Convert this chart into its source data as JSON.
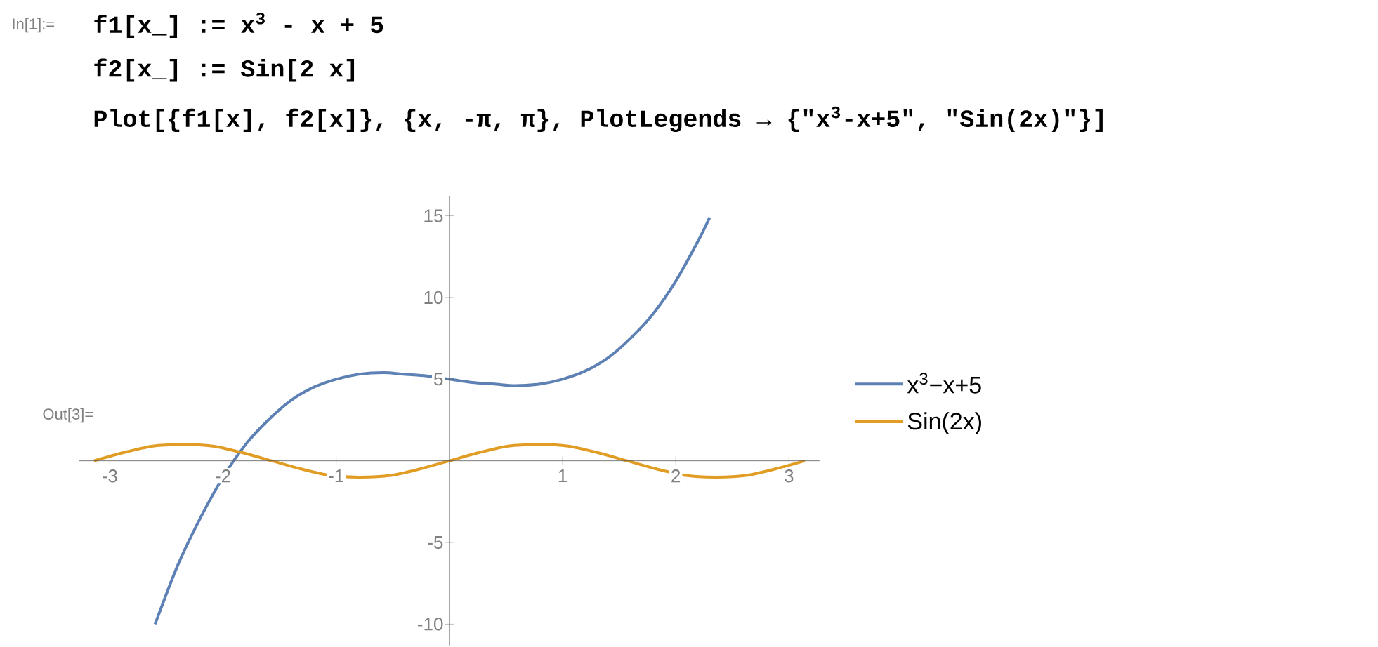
{
  "chart_data": {
    "type": "line",
    "annotations": [
      "In[1]:=",
      "f1[x_] := x$^{3}$ - x + 5",
      "f2[x_] := Sin[2 x]",
      "Plot[{f1[x], f2[x]}, {x, -π, π}, PlotLegends → {\"x$^{3}$-x+5\", \"Sin(2x)\"}]",
      "Out[3]="
    ],
    "series": [
      {
        "name": "x$^{3}$−x+5",
        "color": "#5e81b5",
        "x": [
          -2.6,
          -2.4,
          -2.2,
          -2.0,
          -1.8,
          -1.6,
          -1.4,
          -1.2,
          -1.0,
          -0.8,
          -0.58,
          -0.4,
          -0.2,
          0,
          0.2,
          0.4,
          0.58,
          0.8,
          1.0,
          1.2,
          1.4,
          1.6,
          1.8,
          2.0,
          2.2,
          2.3
        ],
        "values": [
          -10,
          -6.4,
          -3.5,
          -1,
          1,
          2.5,
          3.7,
          4.5,
          5,
          5.3,
          5.4,
          5.3,
          5.2,
          5,
          4.8,
          4.7,
          4.6,
          4.7,
          5,
          5.5,
          6.3,
          7.5,
          9,
          11,
          13.5,
          14.9
        ]
      },
      {
        "name": "Sin(2x)",
        "color": "#e19c24",
        "x": [
          -3.14,
          -2.88,
          -2.62,
          -2.36,
          -2.09,
          -1.83,
          -1.57,
          -1.31,
          -1.05,
          -0.79,
          -0.52,
          -0.26,
          0,
          0.26,
          0.52,
          0.79,
          1.05,
          1.31,
          1.57,
          1.83,
          2.09,
          2.36,
          2.62,
          2.88,
          3.14
        ],
        "values": [
          0,
          0.5,
          0.9,
          1,
          0.9,
          0.5,
          0,
          -0.5,
          -0.9,
          -1,
          -0.9,
          -0.5,
          0,
          0.5,
          0.9,
          1,
          0.9,
          0.5,
          0,
          -0.5,
          -0.9,
          -1,
          -0.9,
          -0.5,
          0
        ]
      }
    ],
    "xlim": [
      -3.27,
      3.27
    ],
    "ylim": [
      -11.3,
      16.2
    ],
    "xticks": [
      -3,
      -2,
      -1,
      1,
      2,
      3
    ],
    "yticks": [
      -10,
      -5,
      5,
      10,
      15
    ],
    "legend": "right",
    "line_style": "solid"
  }
}
